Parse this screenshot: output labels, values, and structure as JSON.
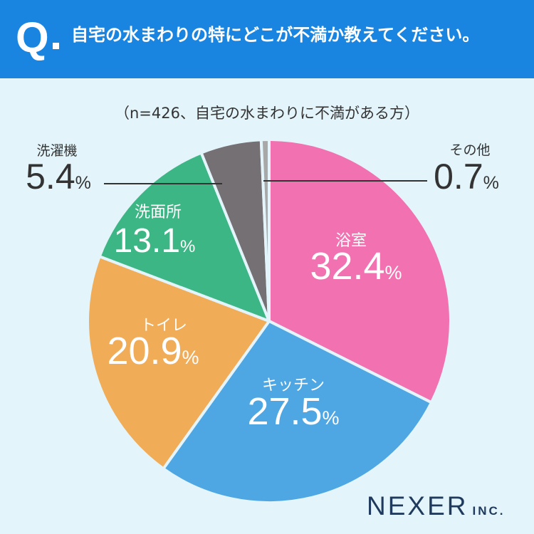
{
  "header": {
    "q_label": "Q",
    "question": "自宅の水まわりの特にどこが不満か教えてください。"
  },
  "note": "（n=426、自宅の水まわりに不満がある方）",
  "brand": {
    "main": "NEXER",
    "suffix": "INC."
  },
  "colors": {
    "header_bg": "#1a85e0",
    "background": "#e3f5fb",
    "slice_border": "#e3f5fb",
    "inside_label": "#ffffff",
    "outside_label": "#333333"
  },
  "chart_data": {
    "type": "pie",
    "unit": "%",
    "start_angle_deg": 0,
    "direction": "clockwise",
    "slices": [
      {
        "label": "浴室",
        "value": 32.4,
        "color": "#f272b1"
      },
      {
        "label": "キッチン",
        "value": 27.5,
        "color": "#4ea6e3"
      },
      {
        "label": "トイレ",
        "value": 20.9,
        "color": "#f0ac57"
      },
      {
        "label": "洗面所",
        "value": 13.1,
        "color": "#3db685"
      },
      {
        "label": "洗濯機",
        "value": 5.4,
        "color": "#757073"
      },
      {
        "label": "その他",
        "value": 0.7,
        "color": "#a8a8a8"
      }
    ]
  }
}
